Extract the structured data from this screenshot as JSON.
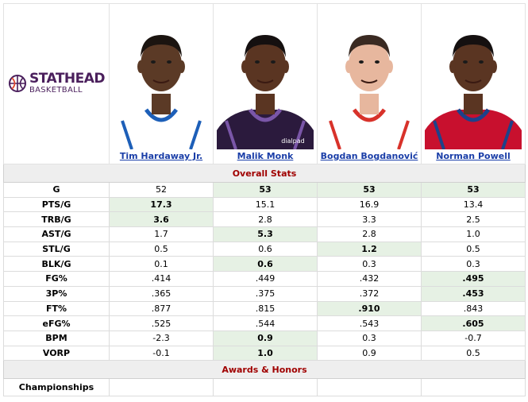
{
  "logo": {
    "top": "STATHEAD",
    "bottom": "BASKETBALL",
    "brand_color": "#4a1f5c",
    "accent_color": "#e2492e"
  },
  "players": [
    {
      "name": "Tim Hardaway Jr.",
      "jersey": "#ffffff",
      "trim": "#1d5fb8",
      "skin": "#5b3a26",
      "hair": "#1b1410"
    },
    {
      "name": "Malik Monk",
      "jersey": "#2b1a3d",
      "trim": "#7a56a8",
      "skin": "#5a3522",
      "hair": "#151010",
      "sponsor": "dialpad"
    },
    {
      "name": "Bogdan Bogdanović",
      "jersey": "#ffffff",
      "trim": "#d8322a",
      "skin": "#e7b79e",
      "hair": "#3a2a22"
    },
    {
      "name": "Norman Powell",
      "jersey": "#c8102e",
      "trim": "#1d428a",
      "skin": "#5a3522",
      "hair": "#151010"
    }
  ],
  "sections": {
    "overall": "Overall Stats",
    "awards": "Awards & Honors"
  },
  "stats": [
    {
      "label": "G",
      "values": [
        "52",
        "53",
        "53",
        "53"
      ],
      "best": [
        1,
        2,
        3
      ]
    },
    {
      "label": "PTS/G",
      "values": [
        "17.3",
        "15.1",
        "16.9",
        "13.4"
      ],
      "best": [
        0
      ]
    },
    {
      "label": "TRB/G",
      "values": [
        "3.6",
        "2.8",
        "3.3",
        "2.5"
      ],
      "best": [
        0
      ]
    },
    {
      "label": "AST/G",
      "values": [
        "1.7",
        "5.3",
        "2.8",
        "1.0"
      ],
      "best": [
        1
      ]
    },
    {
      "label": "STL/G",
      "values": [
        "0.5",
        "0.6",
        "1.2",
        "0.5"
      ],
      "best": [
        2
      ]
    },
    {
      "label": "BLK/G",
      "values": [
        "0.1",
        "0.6",
        "0.3",
        "0.3"
      ],
      "best": [
        1
      ]
    },
    {
      "label": "FG%",
      "values": [
        ".414",
        ".449",
        ".432",
        ".495"
      ],
      "best": [
        3
      ]
    },
    {
      "label": "3P%",
      "values": [
        ".365",
        ".375",
        ".372",
        ".453"
      ],
      "best": [
        3
      ]
    },
    {
      "label": "FT%",
      "values": [
        ".877",
        ".815",
        ".910",
        ".843"
      ],
      "best": [
        2
      ]
    },
    {
      "label": "eFG%",
      "values": [
        ".525",
        ".544",
        ".543",
        ".605"
      ],
      "best": [
        3
      ]
    },
    {
      "label": "BPM",
      "values": [
        "-2.3",
        "0.9",
        "0.3",
        "-0.7"
      ],
      "best": [
        1
      ]
    },
    {
      "label": "VORP",
      "values": [
        "-0.1",
        "1.0",
        "0.9",
        "0.5"
      ],
      "best": [
        1
      ]
    }
  ],
  "awards": [
    {
      "label": "Championships",
      "values": [
        "",
        "",
        "",
        ""
      ]
    }
  ]
}
